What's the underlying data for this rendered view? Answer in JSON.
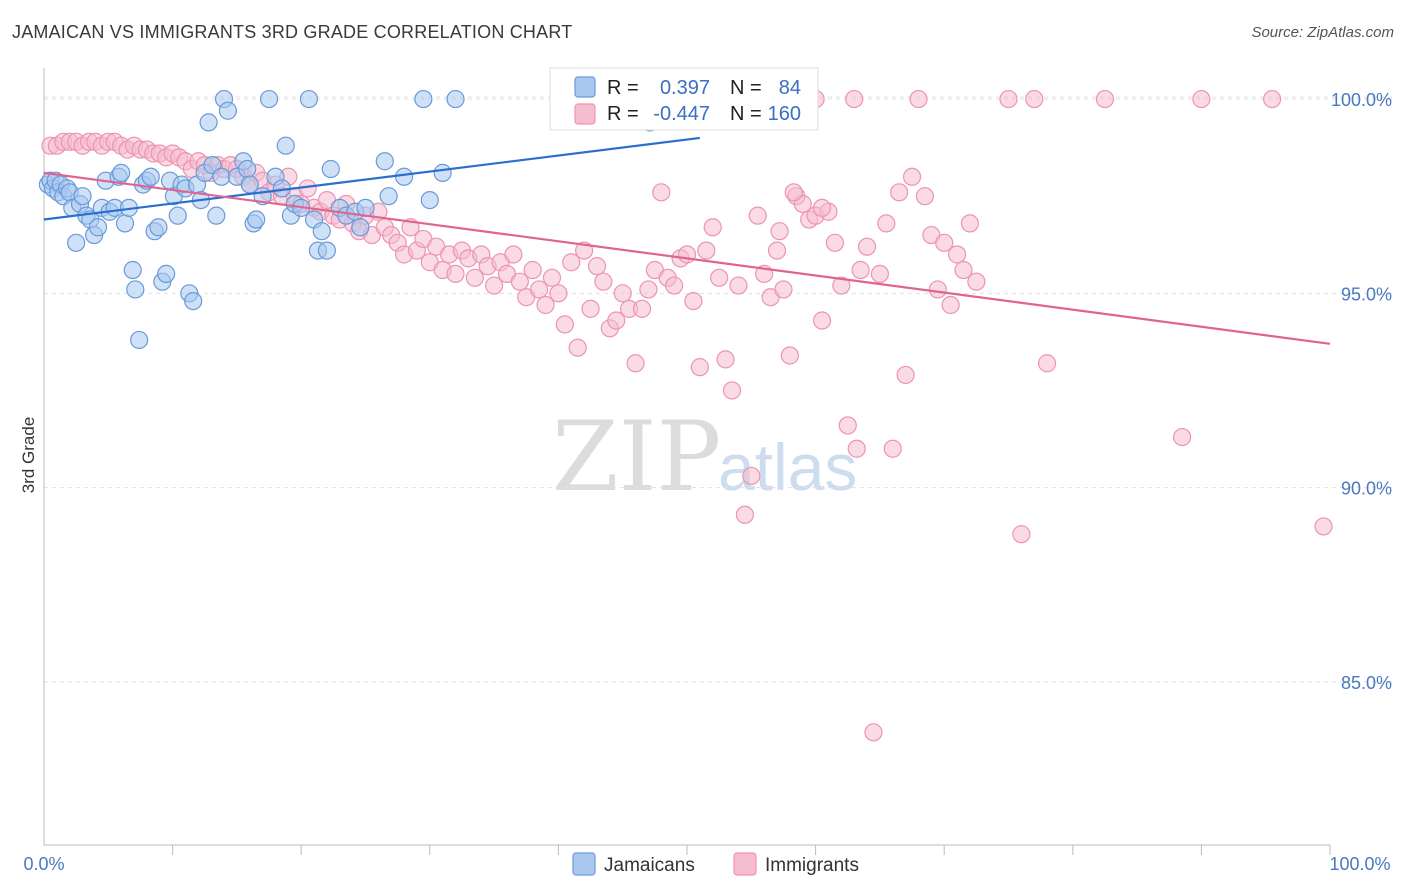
{
  "title": "JAMAICAN VS IMMIGRANTS 3RD GRADE CORRELATION CHART",
  "source": "Source: ZipAtlas.com",
  "watermark": {
    "zip": "ZIP",
    "atlas": "atlas"
  },
  "colors": {
    "jamaicans_fill": "#a8c8f0",
    "jamaicans_stroke": "#6a9ad8",
    "jamaicans_line": "#2a6fd0",
    "immigrants_fill": "#f6bcd0",
    "immigrants_stroke": "#ec94b2",
    "immigrants_line": "#e0648e",
    "tick_label": "#4a78c2"
  },
  "legend": {
    "rows": [
      {
        "r_label": "R =",
        "r_value": "0.397",
        "n_label": "N =",
        "n_value": "84"
      },
      {
        "r_label": "R =",
        "r_value": "-0.447",
        "n_label": "N =",
        "n_value": "160"
      }
    ],
    "bottom": [
      "Jamaicans",
      "Immigrants"
    ]
  },
  "chart_data": {
    "type": "scatter",
    "title": "JAMAICAN VS IMMIGRANTS 3RD GRADE CORRELATION CHART",
    "xlabel": "",
    "ylabel": "3rd Grade",
    "xlim": [
      0,
      100
    ],
    "ylim": [
      80.8,
      100.8
    ],
    "x_tick_labels": [
      "0.0%",
      "100.0%"
    ],
    "y_ticks": [
      {
        "value": 100,
        "label": "100.0%"
      },
      {
        "value": 95,
        "label": "95.0%"
      },
      {
        "value": 90,
        "label": "90.0%"
      },
      {
        "value": 85,
        "label": "85.0%"
      }
    ],
    "grid": "horizontal dashed",
    "legend_position": "top-center",
    "series": [
      {
        "name": "Jamaicans",
        "trend": {
          "x": [
            0,
            51
          ],
          "y": [
            96.9,
            99.0
          ]
        },
        "points": [
          [
            0.3,
            97.8
          ],
          [
            0.5,
            97.9
          ],
          [
            0.7,
            97.7
          ],
          [
            0.9,
            97.9
          ],
          [
            1.1,
            97.6
          ],
          [
            1.3,
            97.8
          ],
          [
            1.5,
            97.5
          ],
          [
            1.8,
            97.7
          ],
          [
            2.0,
            97.6
          ],
          [
            2.2,
            97.2
          ],
          [
            2.5,
            96.3
          ],
          [
            2.8,
            97.3
          ],
          [
            3.0,
            97.5
          ],
          [
            3.3,
            97.0
          ],
          [
            3.6,
            96.9
          ],
          [
            3.9,
            96.5
          ],
          [
            4.2,
            96.7
          ],
          [
            4.5,
            97.2
          ],
          [
            4.8,
            97.9
          ],
          [
            5.1,
            97.1
          ],
          [
            5.5,
            97.2
          ],
          [
            5.8,
            98.0
          ],
          [
            6.0,
            98.1
          ],
          [
            6.3,
            96.8
          ],
          [
            6.6,
            97.2
          ],
          [
            6.9,
            95.6
          ],
          [
            7.1,
            95.1
          ],
          [
            7.4,
            93.8
          ],
          [
            7.7,
            97.8
          ],
          [
            8.0,
            97.9
          ],
          [
            8.3,
            98.0
          ],
          [
            8.6,
            96.6
          ],
          [
            8.9,
            96.7
          ],
          [
            9.2,
            95.3
          ],
          [
            9.5,
            95.5
          ],
          [
            9.8,
            97.9
          ],
          [
            10.1,
            97.5
          ],
          [
            10.4,
            97.0
          ],
          [
            10.7,
            97.8
          ],
          [
            11.0,
            97.7
          ],
          [
            11.3,
            95.0
          ],
          [
            11.6,
            94.8
          ],
          [
            11.9,
            97.8
          ],
          [
            12.2,
            97.4
          ],
          [
            12.5,
            98.1
          ],
          [
            12.8,
            99.4
          ],
          [
            13.1,
            98.3
          ],
          [
            13.4,
            97.0
          ],
          [
            13.8,
            98.0
          ],
          [
            14.0,
            100.0
          ],
          [
            14.3,
            99.7
          ],
          [
            15.0,
            98.0
          ],
          [
            15.5,
            98.4
          ],
          [
            15.8,
            98.2
          ],
          [
            16.0,
            97.8
          ],
          [
            16.3,
            96.8
          ],
          [
            16.5,
            96.9
          ],
          [
            17.0,
            97.5
          ],
          [
            17.5,
            100.0
          ],
          [
            18.0,
            98.0
          ],
          [
            18.5,
            97.7
          ],
          [
            18.8,
            98.8
          ],
          [
            19.2,
            97.0
          ],
          [
            19.5,
            97.3
          ],
          [
            20.0,
            97.2
          ],
          [
            20.6,
            100.0
          ],
          [
            21.0,
            96.9
          ],
          [
            21.3,
            96.1
          ],
          [
            21.6,
            96.6
          ],
          [
            22.0,
            96.1
          ],
          [
            22.3,
            98.2
          ],
          [
            23.0,
            97.2
          ],
          [
            23.5,
            97.0
          ],
          [
            24.2,
            97.1
          ],
          [
            24.6,
            96.7
          ],
          [
            25.0,
            97.2
          ],
          [
            26.5,
            98.4
          ],
          [
            26.8,
            97.5
          ],
          [
            28.0,
            98.0
          ],
          [
            29.5,
            100.0
          ],
          [
            30.0,
            97.4
          ],
          [
            31.0,
            98.1
          ],
          [
            32.0,
            100.0
          ],
          [
            47.1,
            99.4
          ]
        ]
      },
      {
        "name": "Immigrants",
        "trend": {
          "x": [
            0,
            100
          ],
          "y": [
            98.1,
            93.7
          ]
        },
        "points": [
          [
            0.5,
            98.8
          ],
          [
            1.0,
            98.8
          ],
          [
            1.5,
            98.9
          ],
          [
            2.0,
            98.9
          ],
          [
            2.5,
            98.9
          ],
          [
            3.0,
            98.8
          ],
          [
            3.5,
            98.9
          ],
          [
            4.0,
            98.9
          ],
          [
            4.5,
            98.8
          ],
          [
            5.0,
            98.9
          ],
          [
            5.5,
            98.9
          ],
          [
            6.0,
            98.8
          ],
          [
            6.5,
            98.7
          ],
          [
            7.0,
            98.8
          ],
          [
            7.5,
            98.7
          ],
          [
            8.0,
            98.7
          ],
          [
            8.5,
            98.6
          ],
          [
            9.0,
            98.6
          ],
          [
            9.5,
            98.5
          ],
          [
            10.0,
            98.6
          ],
          [
            10.5,
            98.5
          ],
          [
            11.0,
            98.4
          ],
          [
            11.5,
            98.2
          ],
          [
            12.0,
            98.4
          ],
          [
            12.5,
            98.3
          ],
          [
            13.0,
            98.1
          ],
          [
            13.5,
            98.3
          ],
          [
            14.0,
            98.2
          ],
          [
            14.5,
            98.3
          ],
          [
            15.0,
            98.2
          ],
          [
            15.5,
            98.0
          ],
          [
            16.0,
            97.8
          ],
          [
            16.5,
            98.1
          ],
          [
            17.0,
            97.9
          ],
          [
            17.5,
            97.6
          ],
          [
            18.0,
            97.8
          ],
          [
            18.5,
            97.5
          ],
          [
            19.0,
            98.0
          ],
          [
            19.5,
            97.5
          ],
          [
            20.0,
            97.3
          ],
          [
            20.5,
            97.7
          ],
          [
            21.0,
            97.2
          ],
          [
            21.5,
            97.1
          ],
          [
            22.0,
            97.4
          ],
          [
            22.5,
            97.0
          ],
          [
            23.0,
            96.9
          ],
          [
            23.5,
            97.3
          ],
          [
            24.0,
            96.8
          ],
          [
            24.5,
            96.6
          ],
          [
            25.0,
            97.0
          ],
          [
            25.5,
            96.5
          ],
          [
            26.0,
            97.1
          ],
          [
            26.5,
            96.7
          ],
          [
            27.0,
            96.5
          ],
          [
            27.5,
            96.3
          ],
          [
            28.0,
            96.0
          ],
          [
            28.5,
            96.7
          ],
          [
            29.0,
            96.1
          ],
          [
            29.5,
            96.4
          ],
          [
            30.0,
            95.8
          ],
          [
            30.5,
            96.2
          ],
          [
            31.0,
            95.6
          ],
          [
            31.5,
            96.0
          ],
          [
            32.0,
            95.5
          ],
          [
            32.5,
            96.1
          ],
          [
            33.0,
            95.9
          ],
          [
            33.5,
            95.4
          ],
          [
            34.0,
            96.0
          ],
          [
            34.5,
            95.7
          ],
          [
            35.0,
            95.2
          ],
          [
            35.5,
            95.8
          ],
          [
            36.0,
            95.5
          ],
          [
            36.5,
            96.0
          ],
          [
            37.0,
            95.3
          ],
          [
            37.5,
            94.9
          ],
          [
            38.0,
            95.6
          ],
          [
            38.5,
            95.1
          ],
          [
            39.0,
            94.7
          ],
          [
            39.5,
            95.4
          ],
          [
            40.0,
            95.0
          ],
          [
            40.5,
            94.2
          ],
          [
            41.0,
            95.8
          ],
          [
            41.5,
            93.6
          ],
          [
            42.0,
            96.1
          ],
          [
            42.5,
            94.6
          ],
          [
            43.0,
            95.7
          ],
          [
            43.5,
            95.3
          ],
          [
            44.0,
            94.1
          ],
          [
            44.5,
            94.3
          ],
          [
            45.0,
            95.0
          ],
          [
            45.5,
            94.6
          ],
          [
            46.0,
            93.2
          ],
          [
            46.5,
            94.6
          ],
          [
            47.0,
            95.1
          ],
          [
            47.5,
            95.6
          ],
          [
            48.0,
            97.6
          ],
          [
            48.5,
            95.4
          ],
          [
            49.0,
            95.2
          ],
          [
            49.5,
            95.9
          ],
          [
            50.0,
            96.0
          ],
          [
            50.5,
            94.8
          ],
          [
            51.0,
            93.1
          ],
          [
            51.5,
            96.1
          ],
          [
            52.0,
            96.7
          ],
          [
            52.5,
            95.4
          ],
          [
            53.0,
            93.3
          ],
          [
            53.5,
            92.5
          ],
          [
            54.0,
            95.2
          ],
          [
            54.5,
            89.3
          ],
          [
            55.0,
            90.3
          ],
          [
            55.5,
            97.0
          ],
          [
            56.0,
            95.5
          ],
          [
            56.5,
            94.9
          ],
          [
            57.0,
            96.1
          ],
          [
            57.5,
            95.1
          ],
          [
            58.0,
            93.4
          ],
          [
            58.5,
            97.5
          ],
          [
            59.0,
            97.3
          ],
          [
            59.5,
            96.9
          ],
          [
            60.0,
            97.0
          ],
          [
            60.5,
            94.3
          ],
          [
            61.0,
            97.1
          ],
          [
            61.5,
            96.3
          ],
          [
            62.0,
            95.2
          ],
          [
            62.5,
            91.6
          ],
          [
            63.0,
            100.0
          ],
          [
            63.5,
            95.6
          ],
          [
            64.0,
            96.2
          ],
          [
            64.5,
            83.7
          ],
          [
            65.0,
            95.5
          ],
          [
            65.5,
            96.8
          ],
          [
            66.0,
            91.0
          ],
          [
            66.5,
            97.6
          ],
          [
            67.0,
            92.9
          ],
          [
            67.5,
            98.0
          ],
          [
            68.0,
            100.0
          ],
          [
            68.5,
            97.5
          ],
          [
            69.0,
            96.5
          ],
          [
            69.5,
            95.1
          ],
          [
            70.0,
            96.3
          ],
          [
            70.5,
            94.7
          ],
          [
            71.0,
            96.0
          ],
          [
            71.5,
            95.6
          ],
          [
            72.0,
            96.8
          ],
          [
            72.5,
            95.3
          ],
          [
            75.0,
            100.0
          ],
          [
            76.0,
            88.8
          ],
          [
            77.0,
            100.0
          ],
          [
            78.0,
            93.2
          ],
          [
            82.5,
            100.0
          ],
          [
            88.5,
            91.3
          ],
          [
            90.0,
            100.0
          ],
          [
            95.5,
            100.0
          ],
          [
            99.5,
            89.0
          ],
          [
            60.0,
            100.0
          ],
          [
            63.2,
            91.0
          ],
          [
            59.5,
            100.0
          ],
          [
            58.3,
            97.6
          ],
          [
            60.5,
            97.2
          ],
          [
            57.2,
            96.6
          ]
        ]
      }
    ]
  }
}
